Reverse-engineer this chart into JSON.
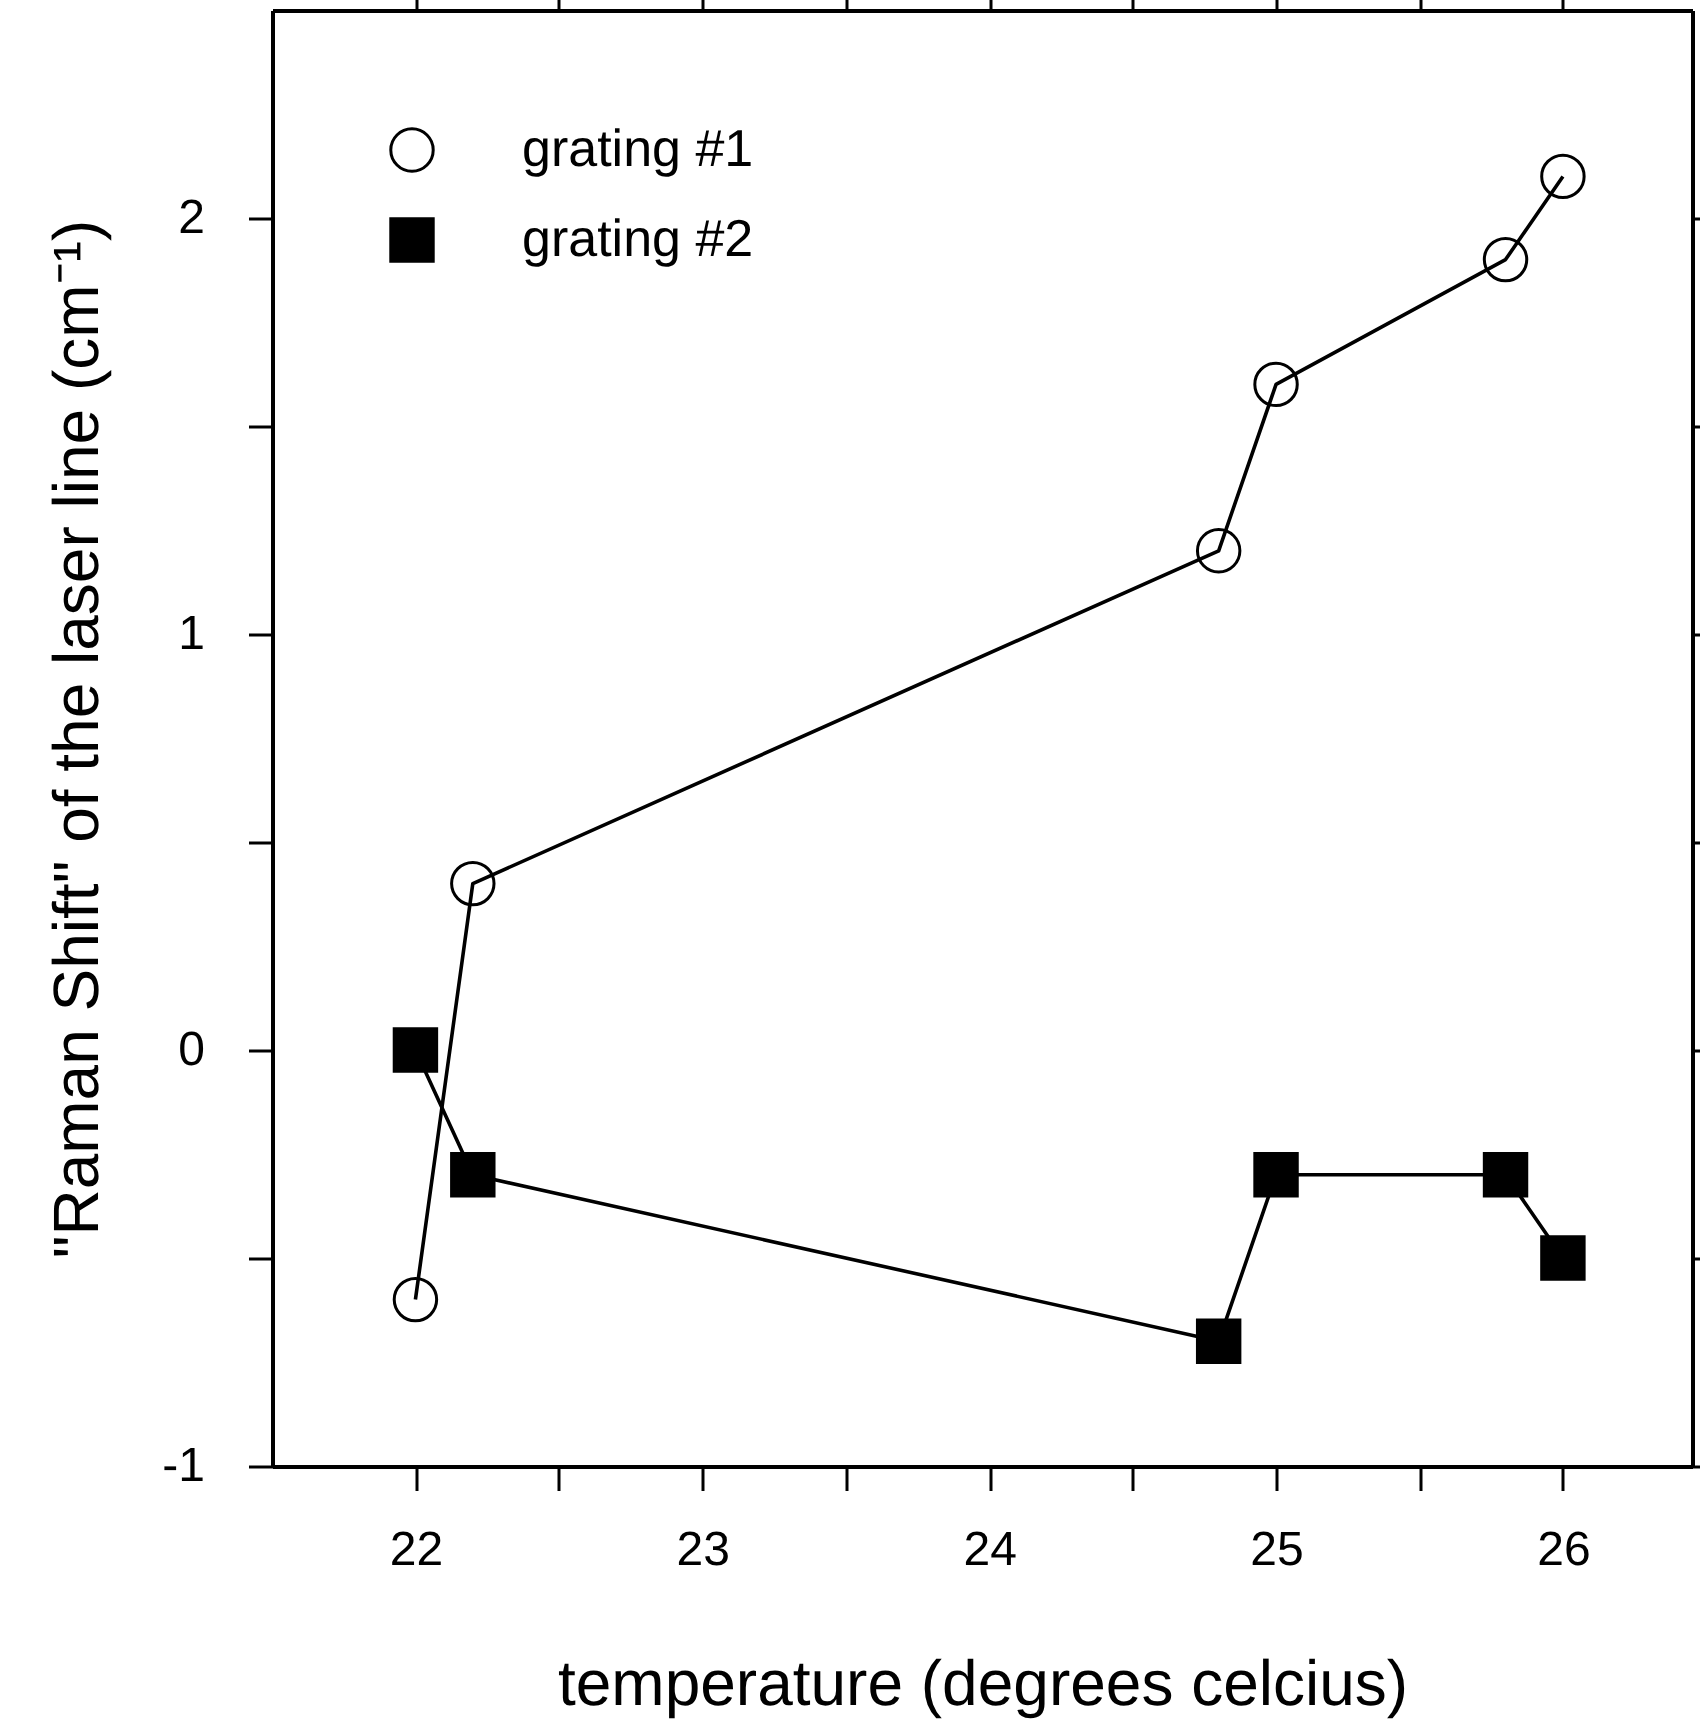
{
  "chart_data": {
    "type": "line",
    "xlabel": "temperature     (degrees celcius)",
    "ylabel": "\"Raman Shift\" of the laser line     (cm⁻¹)",
    "xlim": [
      21.5,
      26.45
    ],
    "ylim": [
      -1,
      2.5
    ],
    "xticks": [
      22,
      {
        "value": 22.5,
        "label": null
      },
      23,
      {
        "value": 23.5,
        "label": null
      },
      24,
      {
        "value": 24.5,
        "label": null
      },
      25,
      {
        "value": 25.5,
        "label": null
      },
      26
    ],
    "yticks": [
      -1,
      {
        "value": -0.5,
        "label": null
      },
      0,
      {
        "value": 0.5,
        "label": null
      },
      1,
      {
        "value": 1.5,
        "label": null
      },
      2
    ],
    "grid": false,
    "legend": "top left",
    "line_style": "solid",
    "series": [
      {
        "name": "grating #1",
        "color": "#000000",
        "marker": "circle",
        "x": [
          22,
          22.2,
          24.8,
          25,
          25.8,
          26
        ],
        "values": [
          -0.6,
          0.4,
          1.2,
          1.6,
          1.9,
          2.1
        ]
      },
      {
        "name": "grating #2",
        "color": "#000000",
        "marker": "square",
        "x": [
          22,
          22.2,
          24.8,
          25,
          25.8,
          26
        ],
        "values": [
          0,
          -0.3,
          -0.7,
          -0.3,
          -0.3,
          -0.5
        ]
      }
    ]
  }
}
